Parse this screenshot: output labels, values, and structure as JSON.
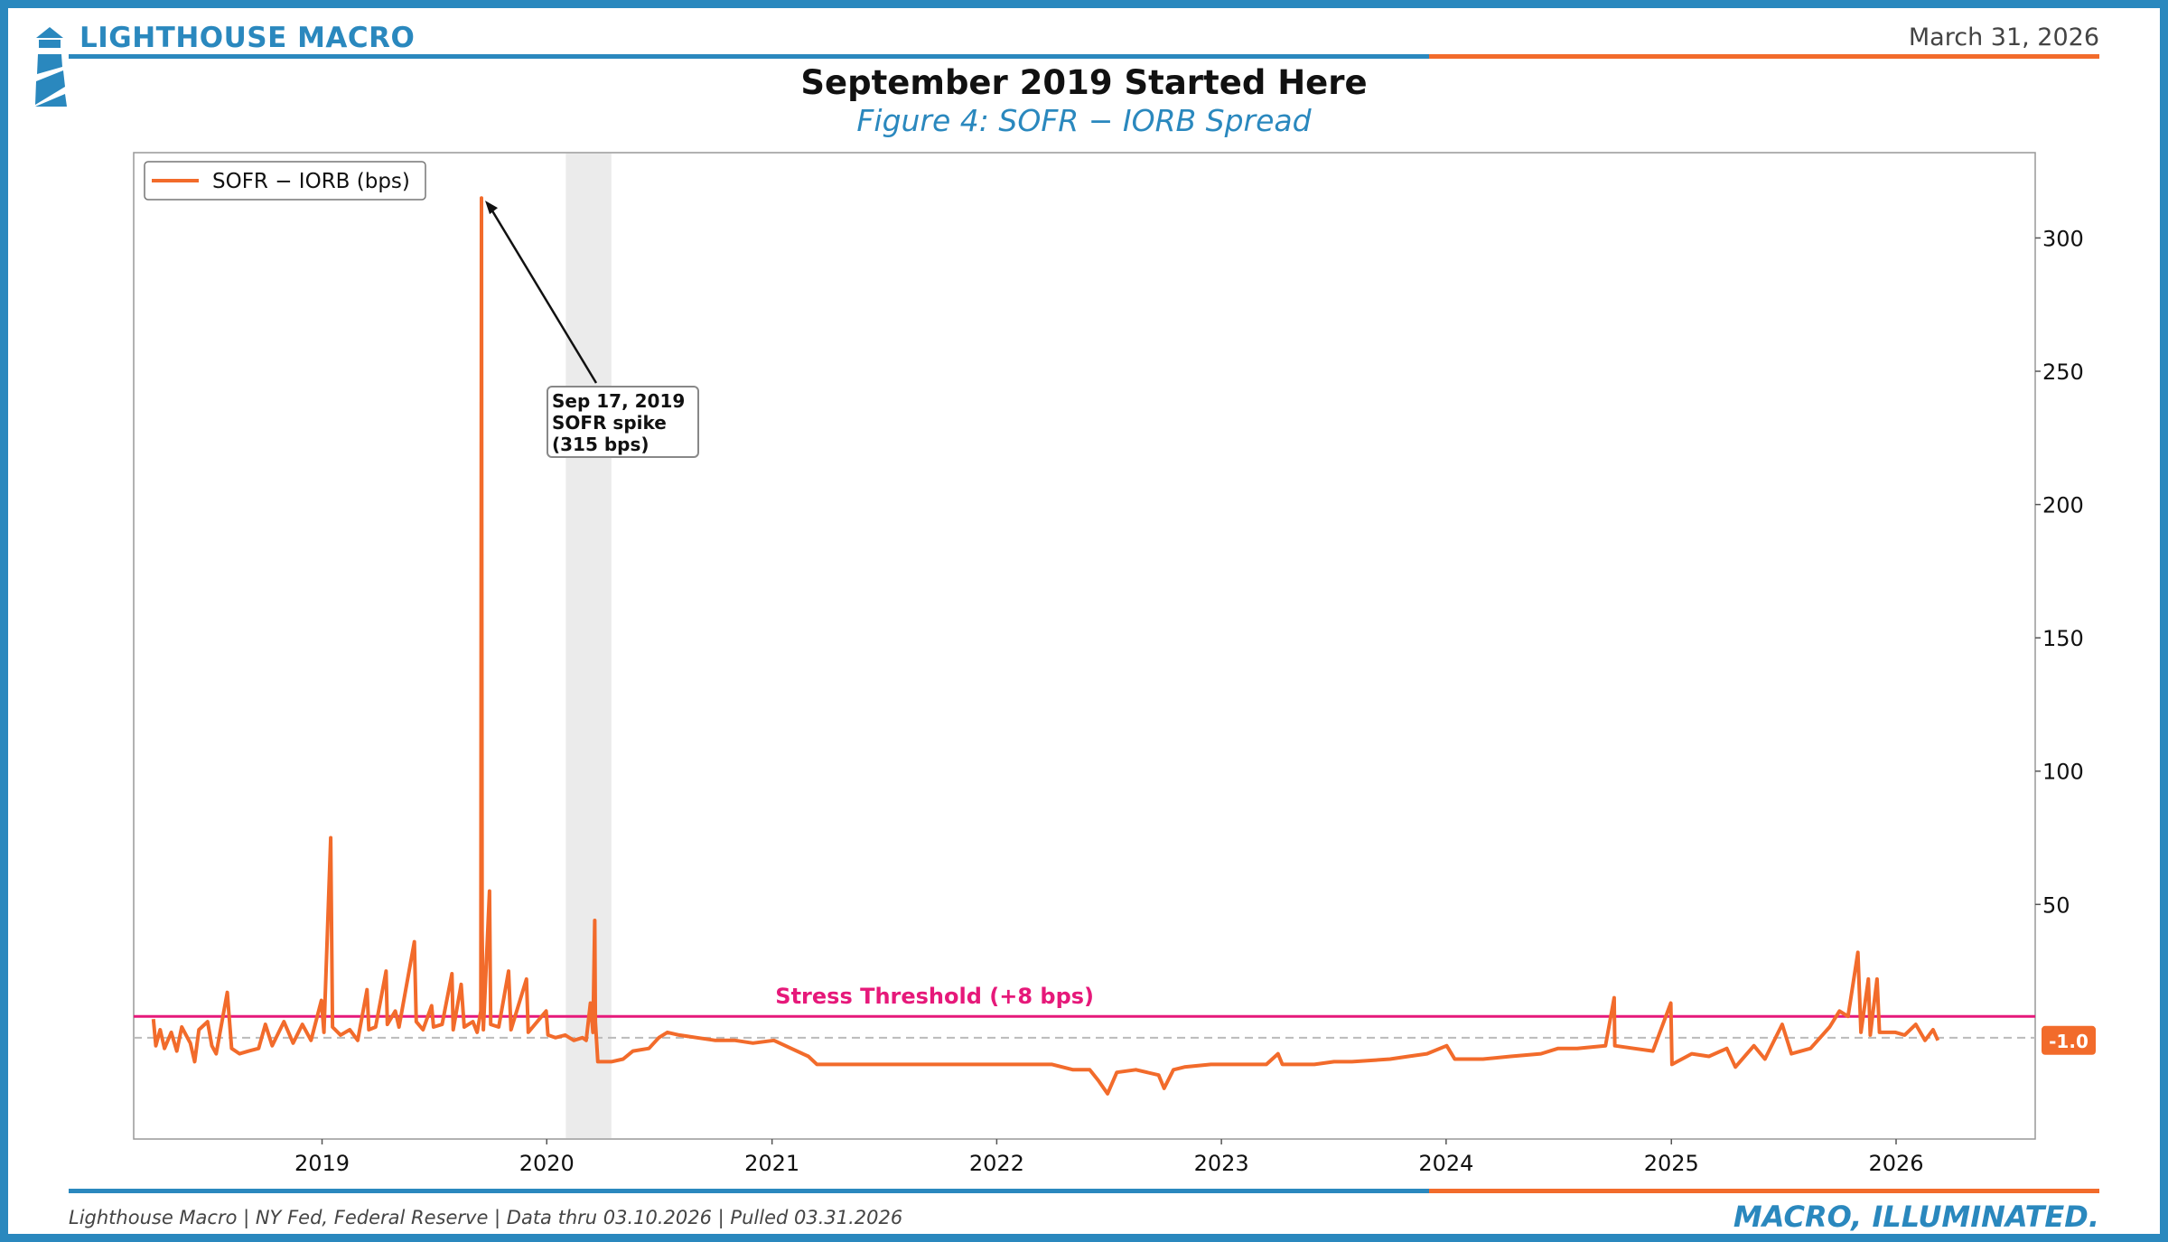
{
  "header": {
    "brand": "LIGHTHOUSE MACRO",
    "date": "March 31, 2026",
    "title": "September 2019 Started Here",
    "subtitle": "Figure 4: SOFR − IORB Spread"
  },
  "footer": {
    "source": "Lighthouse Macro | NY Fed, Federal Reserve | Data thru 03.10.2026 | Pulled 03.31.2026",
    "tagline": "MACRO, ILLUMINATED."
  },
  "colors": {
    "brand_blue": "#2a88be",
    "accent_orange": "#f26b2b",
    "threshold_pink": "#e6197a",
    "shade_gray": "#e8e8e8"
  },
  "chart_data": {
    "type": "line",
    "series": [
      {
        "name": "SOFR − IORB (bps)",
        "color": "#f26b2b",
        "points": [
          [
            "2018-04-02",
            7
          ],
          [
            "2018-04-06",
            -3
          ],
          [
            "2018-04-13",
            3
          ],
          [
            "2018-04-20",
            -4
          ],
          [
            "2018-05-01",
            2
          ],
          [
            "2018-05-10",
            -5
          ],
          [
            "2018-05-18",
            4
          ],
          [
            "2018-06-01",
            -2
          ],
          [
            "2018-06-08",
            -9
          ],
          [
            "2018-06-15",
            3
          ],
          [
            "2018-06-29",
            6
          ],
          [
            "2018-07-06",
            -3
          ],
          [
            "2018-07-13",
            -6
          ],
          [
            "2018-07-31",
            17
          ],
          [
            "2018-08-07",
            -4
          ],
          [
            "2018-08-20",
            -6
          ],
          [
            "2018-09-04",
            -5
          ],
          [
            "2018-09-20",
            -4
          ],
          [
            "2018-10-01",
            5
          ],
          [
            "2018-10-12",
            -3
          ],
          [
            "2018-10-31",
            6
          ],
          [
            "2018-11-15",
            -2
          ],
          [
            "2018-11-30",
            5
          ],
          [
            "2018-12-14",
            -1
          ],
          [
            "2018-12-31",
            14
          ],
          [
            "2019-01-04",
            2
          ],
          [
            "2019-01-15",
            75
          ],
          [
            "2019-01-18",
            4
          ],
          [
            "2019-01-31",
            1
          ],
          [
            "2019-02-15",
            3
          ],
          [
            "2019-02-28",
            -1
          ],
          [
            "2019-03-15",
            18
          ],
          [
            "2019-03-18",
            3
          ],
          [
            "2019-03-29",
            4
          ],
          [
            "2019-04-15",
            25
          ],
          [
            "2019-04-17",
            5
          ],
          [
            "2019-04-30",
            10
          ],
          [
            "2019-05-06",
            4
          ],
          [
            "2019-05-31",
            36
          ],
          [
            "2019-06-03",
            6
          ],
          [
            "2019-06-14",
            3
          ],
          [
            "2019-06-28",
            12
          ],
          [
            "2019-07-01",
            4
          ],
          [
            "2019-07-15",
            5
          ],
          [
            "2019-07-31",
            24
          ],
          [
            "2019-08-02",
            3
          ],
          [
            "2019-08-15",
            20
          ],
          [
            "2019-08-20",
            4
          ],
          [
            "2019-09-03",
            6
          ],
          [
            "2019-09-10",
            2
          ],
          [
            "2019-09-16",
            10
          ],
          [
            "2019-09-17",
            315
          ],
          [
            "2019-09-18",
            40
          ],
          [
            "2019-09-20",
            3
          ],
          [
            "2019-09-30",
            55
          ],
          [
            "2019-10-02",
            5
          ],
          [
            "2019-10-15",
            4
          ],
          [
            "2019-10-31",
            25
          ],
          [
            "2019-11-04",
            3
          ],
          [
            "2019-11-29",
            22
          ],
          [
            "2019-12-02",
            2
          ],
          [
            "2019-12-31",
            10
          ],
          [
            "2020-01-03",
            1
          ],
          [
            "2020-01-15",
            0
          ],
          [
            "2020-01-31",
            1
          ],
          [
            "2020-02-14",
            -1
          ],
          [
            "2020-02-28",
            0
          ],
          [
            "2020-03-05",
            -1
          ],
          [
            "2020-03-12",
            13
          ],
          [
            "2020-03-16",
            2
          ],
          [
            "2020-03-19",
            44
          ],
          [
            "2020-03-20",
            6
          ],
          [
            "2020-03-24",
            -9
          ],
          [
            "2020-04-15",
            -9
          ],
          [
            "2020-05-04",
            -8
          ],
          [
            "2020-05-20",
            -5
          ],
          [
            "2020-06-15",
            -4
          ],
          [
            "2020-07-01",
            0
          ],
          [
            "2020-07-15",
            2
          ],
          [
            "2020-08-03",
            1
          ],
          [
            "2020-09-01",
            0
          ],
          [
            "2020-10-01",
            -1
          ],
          [
            "2020-11-02",
            -1
          ],
          [
            "2020-12-01",
            -2
          ],
          [
            "2021-01-04",
            -1
          ],
          [
            "2021-02-01",
            -4
          ],
          [
            "2021-03-01",
            -7
          ],
          [
            "2021-03-15",
            -10
          ],
          [
            "2021-04-15",
            -10
          ],
          [
            "2021-06-16",
            -10
          ],
          [
            "2021-06-17",
            -10
          ],
          [
            "2021-07-01",
            -10
          ],
          [
            "2022-01-03",
            -10
          ],
          [
            "2022-03-16",
            -10
          ],
          [
            "2022-04-01",
            -10
          ],
          [
            "2022-05-05",
            -12
          ],
          [
            "2022-06-01",
            -12
          ],
          [
            "2022-06-15",
            -16
          ],
          [
            "2022-06-30",
            -21
          ],
          [
            "2022-07-15",
            -13
          ],
          [
            "2022-08-15",
            -12
          ],
          [
            "2022-09-21",
            -14
          ],
          [
            "2022-09-30",
            -19
          ],
          [
            "2022-10-15",
            -12
          ],
          [
            "2022-11-02",
            -11
          ],
          [
            "2022-12-15",
            -10
          ],
          [
            "2023-01-03",
            -10
          ],
          [
            "2023-03-15",
            -10
          ],
          [
            "2023-04-03",
            -6
          ],
          [
            "2023-04-10",
            -10
          ],
          [
            "2023-06-01",
            -10
          ],
          [
            "2023-07-03",
            -9
          ],
          [
            "2023-08-01",
            -9
          ],
          [
            "2023-10-02",
            -8
          ],
          [
            "2023-11-01",
            -7
          ],
          [
            "2023-12-01",
            -6
          ],
          [
            "2024-01-02",
            -3
          ],
          [
            "2024-01-15",
            -8
          ],
          [
            "2024-03-01",
            -8
          ],
          [
            "2024-04-15",
            -7
          ],
          [
            "2024-06-03",
            -6
          ],
          [
            "2024-07-01",
            -4
          ],
          [
            "2024-08-01",
            -4
          ],
          [
            "2024-09-16",
            -3
          ],
          [
            "2024-09-30",
            15
          ],
          [
            "2024-10-01",
            -3
          ],
          [
            "2024-11-01",
            -4
          ],
          [
            "2024-12-02",
            -5
          ],
          [
            "2024-12-31",
            13
          ],
          [
            "2025-01-02",
            -10
          ],
          [
            "2025-02-03",
            -6
          ],
          [
            "2025-03-03",
            -7
          ],
          [
            "2025-04-01",
            -4
          ],
          [
            "2025-04-15",
            -11
          ],
          [
            "2025-05-15",
            -3
          ],
          [
            "2025-06-02",
            -8
          ],
          [
            "2025-06-30",
            5
          ],
          [
            "2025-07-15",
            -6
          ],
          [
            "2025-08-15",
            -4
          ],
          [
            "2025-09-15",
            4
          ],
          [
            "2025-10-01",
            10
          ],
          [
            "2025-10-15",
            8
          ],
          [
            "2025-10-31",
            32
          ],
          [
            "2025-11-05",
            2
          ],
          [
            "2025-11-17",
            22
          ],
          [
            "2025-11-20",
            1
          ],
          [
            "2025-12-01",
            22
          ],
          [
            "2025-12-05",
            2
          ],
          [
            "2025-12-31",
            2
          ],
          [
            "2026-01-15",
            1
          ],
          [
            "2026-02-02",
            5
          ],
          [
            "2026-02-17",
            -1
          ],
          [
            "2026-03-02",
            3
          ],
          [
            "2026-03-10",
            -1
          ]
        ]
      }
    ],
    "reference_lines": [
      {
        "label": "Stress Threshold (+8 bps)",
        "value": 8,
        "color": "#e6197a"
      },
      {
        "label": "",
        "value": 0,
        "color": "#bbbbbb",
        "style": "dashed"
      }
    ],
    "shaded_ranges": [
      {
        "start": "2020-02-01",
        "end": "2020-04-15"
      }
    ],
    "annotation": {
      "text_lines": [
        "Sep 17, 2019",
        "SOFR spike",
        "(315 bps)"
      ],
      "target_x": "2019-09-17",
      "target_y": 315
    },
    "last_value_label": "-1.0",
    "last_value": -1.0,
    "xlim": [
      "2018-03-01",
      "2026-08-15"
    ],
    "ylim": [
      -38,
      332
    ],
    "y_ticks": [
      50,
      100,
      150,
      200,
      250,
      300
    ],
    "x_ticks": [
      "2019",
      "2020",
      "2021",
      "2022",
      "2023",
      "2024",
      "2025",
      "2026"
    ],
    "y_axis_side": "right",
    "legend_placement": "top-left",
    "grid": false
  }
}
